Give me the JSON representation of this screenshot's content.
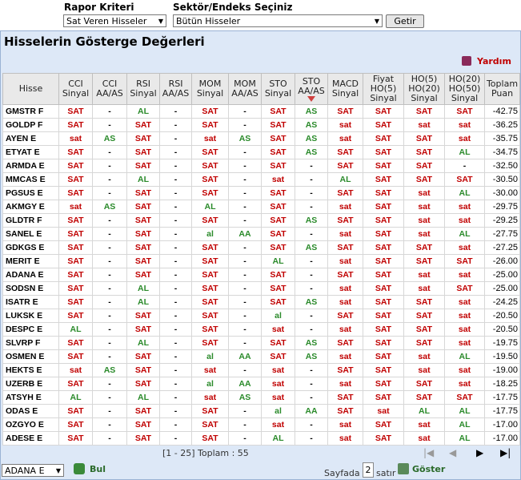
{
  "toolbar": {
    "criteria_label": "Rapor Kriteri",
    "criteria_value": "Sat Veren Hisseler",
    "sector_label": "Sektör/Endeks Seçiniz",
    "sector_value": "Bütün Hisseler",
    "button": "Getir"
  },
  "panel": {
    "title": "Hisselerin Gösterge Değerleri",
    "help": "Yardım"
  },
  "table": {
    "columns": [
      [
        "Hisse"
      ],
      [
        "CCI",
        "Sinyal"
      ],
      [
        "CCI",
        "AA/AS"
      ],
      [
        "RSI",
        "Sinyal"
      ],
      [
        "RSI",
        "AA/AS"
      ],
      [
        "MOM",
        "Sinyal"
      ],
      [
        "MOM",
        "AA/AS"
      ],
      [
        "STO",
        "Sinyal"
      ],
      [
        "STO",
        "AA/AS"
      ],
      [
        "MACD",
        "Sinyal"
      ],
      [
        "Fiyat",
        "HO(5)",
        "Sinyal"
      ],
      [
        "HO(5)",
        "HO(20)",
        "Sinyal"
      ],
      [
        "HO(20)",
        "HO(50)",
        "Sinyal"
      ],
      [
        "Toplam",
        "Puan"
      ]
    ],
    "rows": [
      [
        "GMSTR F",
        "SAT",
        "-",
        "AL",
        "-",
        "SAT",
        "-",
        "SAT",
        "AS",
        "SAT",
        "SAT",
        "SAT",
        "SAT",
        "-42.75"
      ],
      [
        "GOLDP F",
        "SAT",
        "-",
        "SAT",
        "-",
        "SAT",
        "-",
        "SAT",
        "AS",
        "sat",
        "SAT",
        "sat",
        "sat",
        "-36.25"
      ],
      [
        "AYEN E",
        "sat",
        "AS",
        "SAT",
        "-",
        "sat",
        "AS",
        "SAT",
        "AS",
        "sat",
        "SAT",
        "SAT",
        "sat",
        "-35.75"
      ],
      [
        "ETYAT E",
        "SAT",
        "-",
        "SAT",
        "-",
        "SAT",
        "-",
        "SAT",
        "AS",
        "SAT",
        "SAT",
        "SAT",
        "AL",
        "-34.75"
      ],
      [
        "ARMDA E",
        "SAT",
        "-",
        "SAT",
        "-",
        "SAT",
        "-",
        "SAT",
        "-",
        "SAT",
        "SAT",
        "SAT",
        "-",
        "-32.50"
      ],
      [
        "MMCAS E",
        "SAT",
        "-",
        "AL",
        "-",
        "SAT",
        "-",
        "sat",
        "-",
        "AL",
        "SAT",
        "SAT",
        "SAT",
        "-30.50"
      ],
      [
        "PGSUS E",
        "SAT",
        "-",
        "SAT",
        "-",
        "SAT",
        "-",
        "SAT",
        "-",
        "SAT",
        "SAT",
        "sat",
        "AL",
        "-30.00"
      ],
      [
        "AKMGY E",
        "sat",
        "AS",
        "SAT",
        "-",
        "AL",
        "-",
        "SAT",
        "-",
        "sat",
        "SAT",
        "sat",
        "sat",
        "-29.75"
      ],
      [
        "GLDTR F",
        "SAT",
        "-",
        "SAT",
        "-",
        "SAT",
        "-",
        "SAT",
        "AS",
        "SAT",
        "SAT",
        "sat",
        "sat",
        "-29.25"
      ],
      [
        "SANEL E",
        "SAT",
        "-",
        "SAT",
        "-",
        "al",
        "AA",
        "SAT",
        "-",
        "sat",
        "SAT",
        "sat",
        "AL",
        "-27.75"
      ],
      [
        "GDKGS E",
        "SAT",
        "-",
        "SAT",
        "-",
        "SAT",
        "-",
        "SAT",
        "AS",
        "SAT",
        "SAT",
        "SAT",
        "sat",
        "-27.25"
      ],
      [
        "MERIT E",
        "SAT",
        "-",
        "SAT",
        "-",
        "SAT",
        "-",
        "AL",
        "-",
        "sat",
        "SAT",
        "SAT",
        "SAT",
        "-26.00"
      ],
      [
        "ADANA E",
        "SAT",
        "-",
        "SAT",
        "-",
        "SAT",
        "-",
        "SAT",
        "-",
        "SAT",
        "SAT",
        "sat",
        "sat",
        "-25.00"
      ],
      [
        "SODSN E",
        "SAT",
        "-",
        "AL",
        "-",
        "SAT",
        "-",
        "SAT",
        "-",
        "sat",
        "SAT",
        "sat",
        "SAT",
        "-25.00"
      ],
      [
        "ISATR E",
        "SAT",
        "-",
        "AL",
        "-",
        "SAT",
        "-",
        "SAT",
        "AS",
        "sat",
        "SAT",
        "SAT",
        "sat",
        "-24.25"
      ],
      [
        "LUKSK E",
        "SAT",
        "-",
        "SAT",
        "-",
        "SAT",
        "-",
        "al",
        "-",
        "SAT",
        "SAT",
        "SAT",
        "sat",
        "-20.50"
      ],
      [
        "DESPC E",
        "AL",
        "-",
        "SAT",
        "-",
        "SAT",
        "-",
        "sat",
        "-",
        "sat",
        "SAT",
        "SAT",
        "sat",
        "-20.50"
      ],
      [
        "SLVRP F",
        "SAT",
        "-",
        "AL",
        "-",
        "SAT",
        "-",
        "SAT",
        "AS",
        "SAT",
        "SAT",
        "SAT",
        "sat",
        "-19.75"
      ],
      [
        "OSMEN E",
        "SAT",
        "-",
        "SAT",
        "-",
        "al",
        "AA",
        "SAT",
        "AS",
        "sat",
        "SAT",
        "sat",
        "AL",
        "-19.50"
      ],
      [
        "HEKTS E",
        "sat",
        "AS",
        "SAT",
        "-",
        "sat",
        "-",
        "sat",
        "-",
        "SAT",
        "SAT",
        "sat",
        "sat",
        "-19.00"
      ],
      [
        "UZERB E",
        "SAT",
        "-",
        "SAT",
        "-",
        "al",
        "AA",
        "sat",
        "-",
        "sat",
        "SAT",
        "SAT",
        "sat",
        "-18.25"
      ],
      [
        "ATSYH E",
        "AL",
        "-",
        "AL",
        "-",
        "sat",
        "AS",
        "sat",
        "-",
        "SAT",
        "SAT",
        "SAT",
        "SAT",
        "-17.75"
      ],
      [
        "ODAS E",
        "SAT",
        "-",
        "SAT",
        "-",
        "SAT",
        "-",
        "al",
        "AA",
        "SAT",
        "sat",
        "AL",
        "AL",
        "-17.75"
      ],
      [
        "OZGYO E",
        "SAT",
        "-",
        "SAT",
        "-",
        "SAT",
        "-",
        "sat",
        "-",
        "sat",
        "SAT",
        "sat",
        "AL",
        "-17.00"
      ],
      [
        "ADESE E",
        "SAT",
        "-",
        "SAT",
        "-",
        "SAT",
        "-",
        "AL",
        "-",
        "sat",
        "SAT",
        "sat",
        "AL",
        "-17.00"
      ]
    ]
  },
  "footer": {
    "range": "[1 - 25] Toplam : 55",
    "stock_select": "ADANA E",
    "find": "Bul",
    "page_label": "Sayfada",
    "rows_value": "2",
    "rows_label": "satır",
    "show": "Göster"
  }
}
